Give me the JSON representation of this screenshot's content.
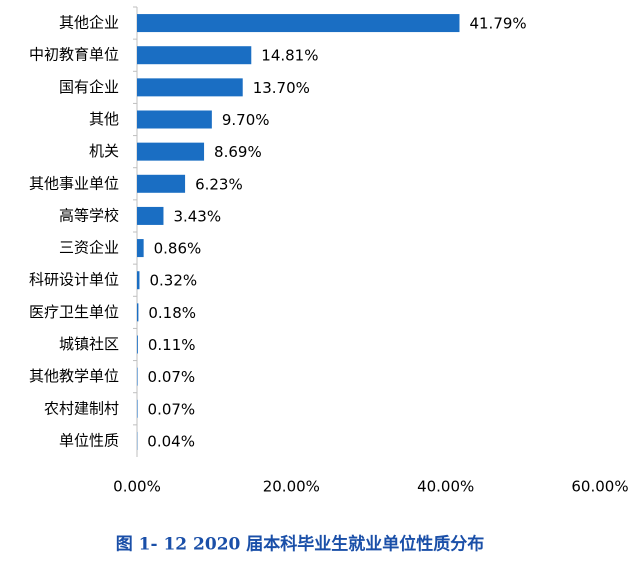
{
  "chart_data": {
    "type": "barh",
    "caption": "图 1- 12    2020 届本科毕业生就业单位性质分布",
    "categories": [
      "其他企业",
      "中初教育单位",
      "国有企业",
      "其他",
      "机关",
      "其他事业单位",
      "高等学校",
      "三资企业",
      "科研设计单位",
      "医疗卫生单位",
      "城镇社区",
      "其他教学单位",
      "农村建制村",
      "单位性质"
    ],
    "values": [
      41.79,
      14.81,
      13.7,
      9.7,
      8.69,
      6.23,
      3.43,
      0.86,
      0.32,
      0.18,
      0.11,
      0.07,
      0.07,
      0.04
    ],
    "value_labels": [
      "41.79%",
      "14.81%",
      "13.70%",
      "9.70%",
      "8.69%",
      "6.23%",
      "3.43%",
      "0.86%",
      "0.32%",
      "0.18%",
      "0.11%",
      "0.07%",
      "0.07%",
      "0.04%"
    ],
    "color": "#1a6ec3",
    "xlim": [
      0,
      60
    ],
    "xticks": [
      {
        "value": 0,
        "label": "0.00%"
      },
      {
        "value": 20,
        "label": "20.00%"
      },
      {
        "value": 40,
        "label": "40.00%"
      },
      {
        "value": 60,
        "label": "60.00%"
      }
    ],
    "grid": false
  }
}
